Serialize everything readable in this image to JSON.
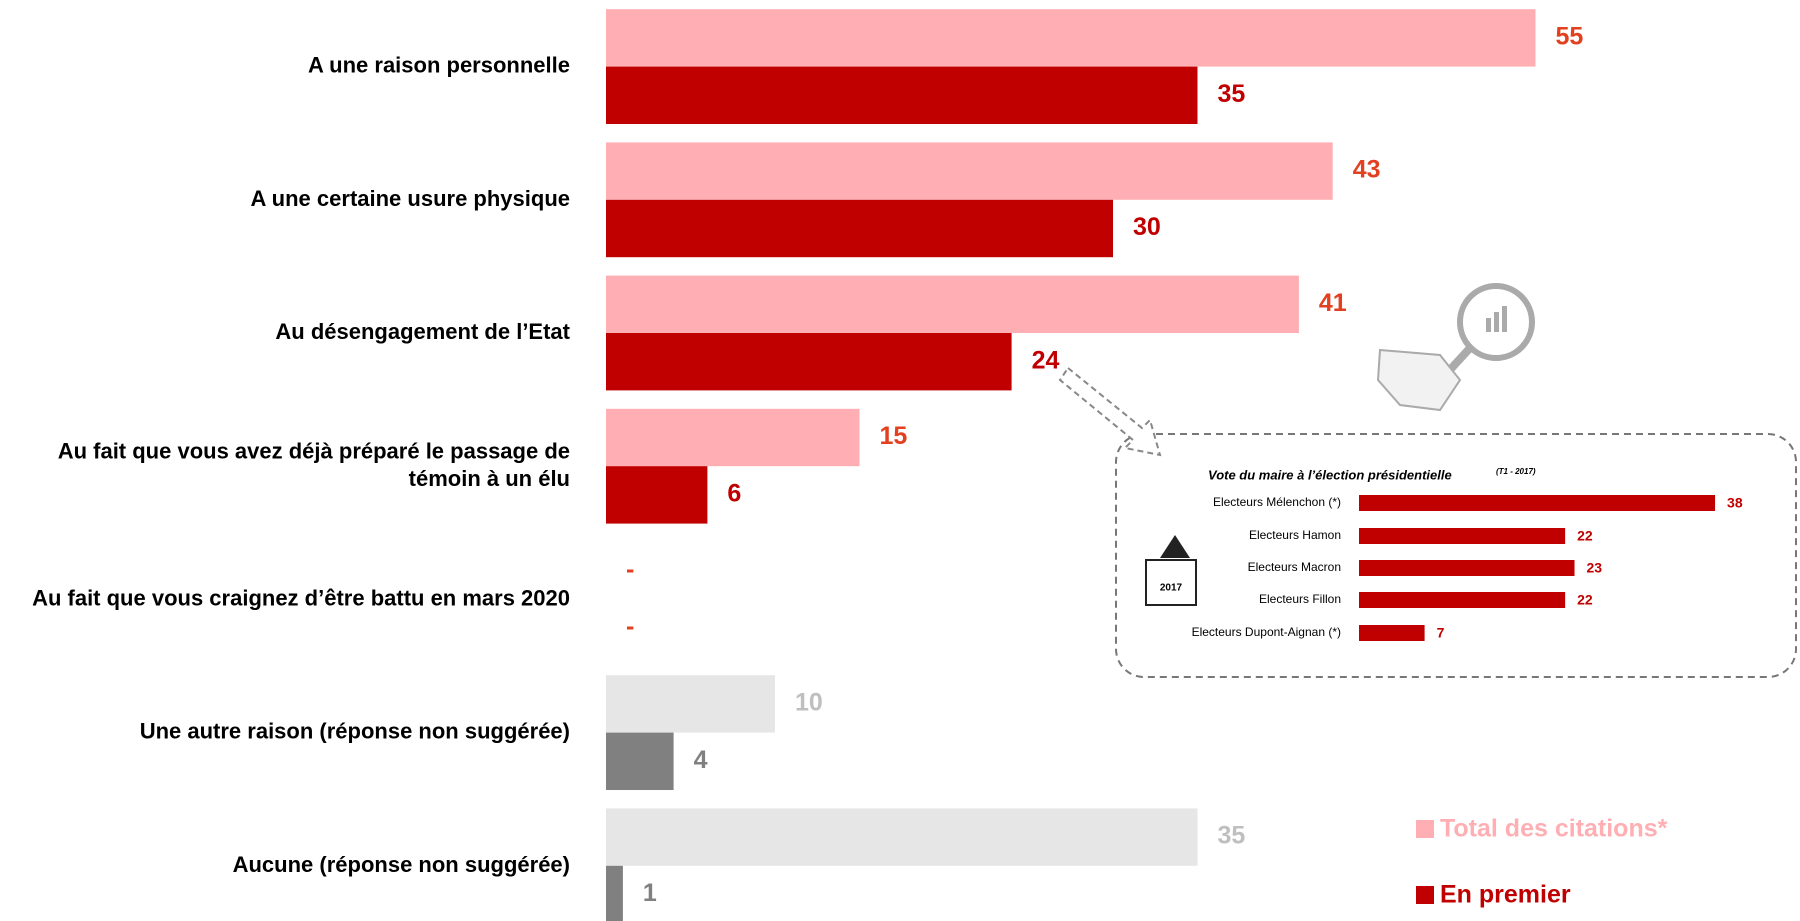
{
  "chart_data": [
    {
      "type": "bar",
      "categories": [
        "A une raison personnelle",
        "A une certaine usure physique",
        "Au désengagement de l’Etat",
        "Au fait que vous avez déjà préparé le passage de témoin à un élu",
        "Au fait que vous craignez d’être battu en mars 2020",
        "Une autre raison (réponse non suggérée)",
        "Aucune (réponse non suggérée)"
      ],
      "series": [
        {
          "name": "Total des citations*",
          "color": "#ffafb3",
          "values": [
            55,
            43,
            41,
            15,
            null,
            10,
            35
          ],
          "value_labels": [
            "55",
            "43",
            "41",
            "15",
            "-",
            "10",
            "35"
          ],
          "colors": [
            "#ffafb3",
            "#ffafb3",
            "#ffafb3",
            "#ffafb3",
            "#ffafb3",
            "#e6e6e6",
            "#e6e6e6"
          ],
          "label_colors": [
            "#e2401f",
            "#e2401f",
            "#e2401f",
            "#e2401f",
            "#e2401f",
            "#bfbfbf",
            "#bfbfbf"
          ]
        },
        {
          "name": "En premier",
          "color": "#c00000",
          "values": [
            35,
            30,
            24,
            6,
            null,
            4,
            1
          ],
          "value_labels": [
            "35",
            "30",
            "24",
            "6",
            "-",
            "4",
            "1"
          ],
          "colors": [
            "#c00000",
            "#c00000",
            "#c00000",
            "#c00000",
            "#c00000",
            "#808080",
            "#808080"
          ],
          "label_colors": [
            "#c00000",
            "#c00000",
            "#c00000",
            "#c00000",
            "#e2401f",
            "#808080",
            "#808080"
          ]
        }
      ],
      "legend": "bottom-right"
    },
    {
      "type": "bar",
      "title": "Vote du maire à l’élection présidentielle",
      "subtitle": "(T1 - 2017)",
      "annotation": "2017",
      "categories": [
        "Electeurs Mélenchon (*)",
        "Electeurs Hamon",
        "Electeurs Macron",
        "Electeurs Fillon",
        "Electeurs Dupont-Aignan (*)"
      ],
      "values": [
        38,
        22,
        23,
        22,
        7
      ],
      "color": "#c00000"
    }
  ]
}
